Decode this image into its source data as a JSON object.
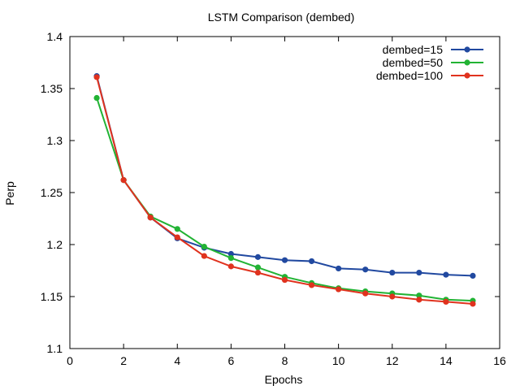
{
  "chart_data": {
    "type": "line",
    "title": "LSTM Comparison (dembed)",
    "xlabel": "Epochs",
    "ylabel": "Perp",
    "xlim": [
      0,
      16
    ],
    "ylim": [
      1.1,
      1.4
    ],
    "xticks": [
      "0",
      "2",
      "4",
      "6",
      "8",
      "10",
      "12",
      "14",
      "16"
    ],
    "yticks": [
      "1.1",
      "1.15",
      "1.2",
      "1.25",
      "1.3",
      "1.35",
      "1.4"
    ],
    "grid": false,
    "legend_position": "top-right",
    "x": [
      1,
      2,
      3,
      4,
      5,
      6,
      7,
      8,
      9,
      10,
      11,
      12,
      13,
      14,
      15
    ],
    "series": [
      {
        "name": "dembed=15",
        "color": "#2149a0",
        "values": [
          1.362,
          1.262,
          1.226,
          1.206,
          1.197,
          1.191,
          1.188,
          1.185,
          1.184,
          1.177,
          1.176,
          1.173,
          1.173,
          1.171,
          1.17
        ]
      },
      {
        "name": "dembed=50",
        "color": "#22b334",
        "values": [
          1.341,
          1.262,
          1.227,
          1.215,
          1.198,
          1.187,
          1.178,
          1.169,
          1.163,
          1.158,
          1.155,
          1.153,
          1.151,
          1.147,
          1.146
        ]
      },
      {
        "name": "dembed=100",
        "color": "#e0321e",
        "values": [
          1.361,
          1.262,
          1.226,
          1.207,
          1.189,
          1.179,
          1.173,
          1.166,
          1.161,
          1.157,
          1.153,
          1.15,
          1.147,
          1.145,
          1.143
        ]
      }
    ]
  }
}
